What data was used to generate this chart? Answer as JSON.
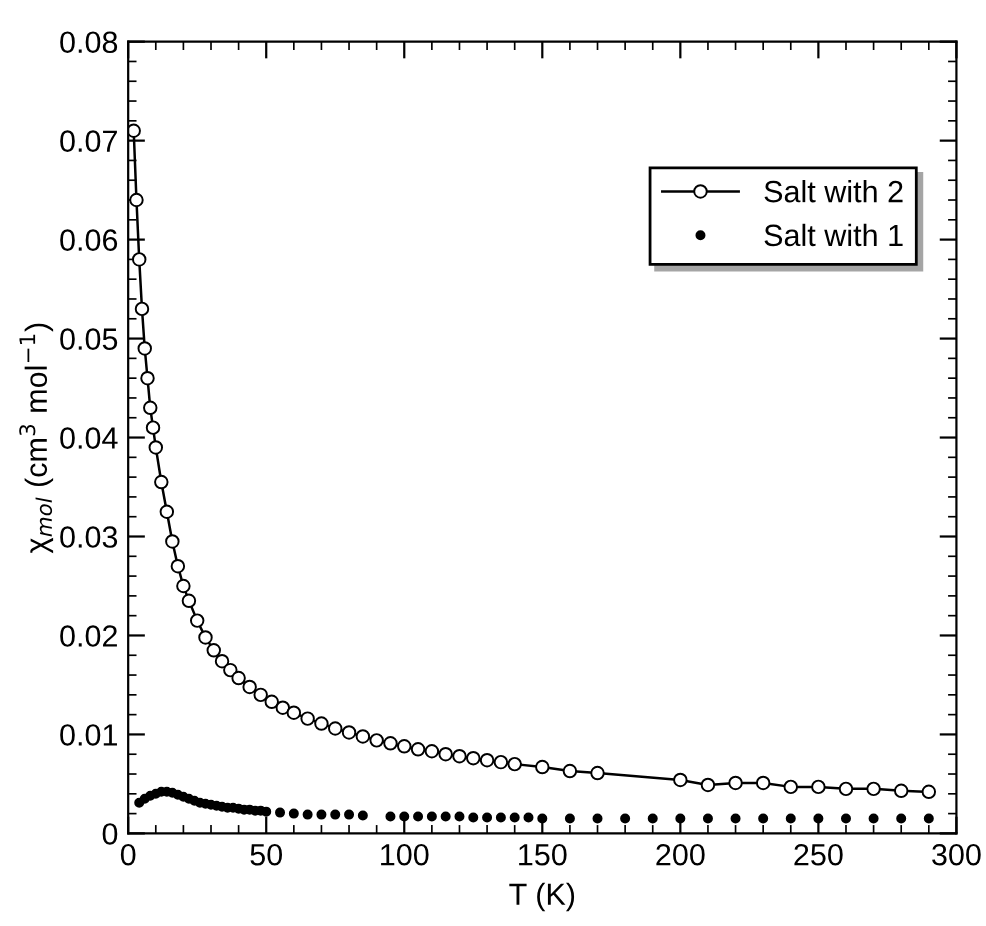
{
  "chart_data": {
    "type": "line",
    "xlabel": "T (K)",
    "ylabel": "χ$_{mol}$ (cm$^{3}$ mol$^{−1}$)",
    "xlim": [
      0,
      300
    ],
    "xticks": [
      0,
      50,
      100,
      150,
      200,
      250,
      300
    ],
    "ylim": [
      0,
      0.08
    ],
    "yticks": [
      0,
      0.01,
      0.02,
      0.03,
      0.04,
      0.05,
      0.06,
      0.07,
      0.08
    ],
    "grid": false,
    "legend": "top right",
    "series": [
      {
        "name": "Salt with 2",
        "marker": "circle",
        "color": "#000000",
        "x": [
          2,
          3,
          4,
          5,
          6,
          7,
          8,
          9,
          10,
          12,
          14,
          16,
          18,
          20,
          22,
          25,
          28,
          31,
          34,
          37,
          40,
          44,
          48,
          52,
          56,
          60,
          65,
          70,
          75,
          80,
          85,
          90,
          95,
          100,
          105,
          110,
          115,
          120,
          125,
          130,
          135,
          140,
          150,
          160,
          170,
          200,
          210,
          220,
          230,
          240,
          250,
          260,
          270,
          280,
          290
        ],
        "values": [
          0.071,
          0.064,
          0.058,
          0.053,
          0.049,
          0.046,
          0.043,
          0.041,
          0.039,
          0.0355,
          0.0325,
          0.0295,
          0.027,
          0.025,
          0.0235,
          0.0215,
          0.0198,
          0.0185,
          0.0174,
          0.0165,
          0.0157,
          0.0148,
          0.014,
          0.0133,
          0.0127,
          0.0122,
          0.0116,
          0.0111,
          0.0106,
          0.0102,
          0.0098,
          0.0094,
          0.0091,
          0.0088,
          0.0085,
          0.0083,
          0.008,
          0.0078,
          0.0076,
          0.0074,
          0.0072,
          0.007,
          0.0067,
          0.0063,
          0.0061,
          0.0054,
          0.0049,
          0.0051,
          0.0051,
          0.0047,
          0.0047,
          0.0045,
          0.0045,
          0.0043,
          0.0042
        ]
      },
      {
        "name": "Salt with 1",
        "type": "scatter",
        "marker": "circle",
        "color": "#000000",
        "x": [
          4,
          6,
          8,
          10,
          12,
          14,
          16,
          18,
          20,
          22,
          24,
          26,
          28,
          30,
          32,
          34,
          36,
          38,
          40,
          42,
          44,
          46,
          48,
          50,
          55,
          60,
          65,
          70,
          75,
          80,
          85,
          95,
          100,
          105,
          110,
          115,
          120,
          125,
          130,
          135,
          140,
          145,
          150,
          160,
          170,
          180,
          190,
          200,
          210,
          220,
          230,
          240,
          250,
          260,
          270,
          280,
          290
        ],
        "values": [
          0.0031,
          0.0035,
          0.0038,
          0.004,
          0.0042,
          0.0042,
          0.0041,
          0.0039,
          0.0037,
          0.0035,
          0.0033,
          0.0031,
          0.003,
          0.0029,
          0.0028,
          0.0027,
          0.0026,
          0.0026,
          0.0025,
          0.0024,
          0.0024,
          0.0023,
          0.0023,
          0.0022,
          0.0021,
          0.002,
          0.0019,
          0.0019,
          0.0019,
          0.0019,
          0.0018,
          0.0017,
          0.0017,
          0.0017,
          0.0017,
          0.0017,
          0.0017,
          0.0016,
          0.0016,
          0.0016,
          0.0016,
          0.0016,
          0.0015,
          0.0015,
          0.0015,
          0.0015,
          0.0015,
          0.0015,
          0.0015,
          0.0015,
          0.0015,
          0.0015,
          0.0015,
          0.0015,
          0.0015,
          0.0015,
          0.0015
        ]
      }
    ]
  }
}
